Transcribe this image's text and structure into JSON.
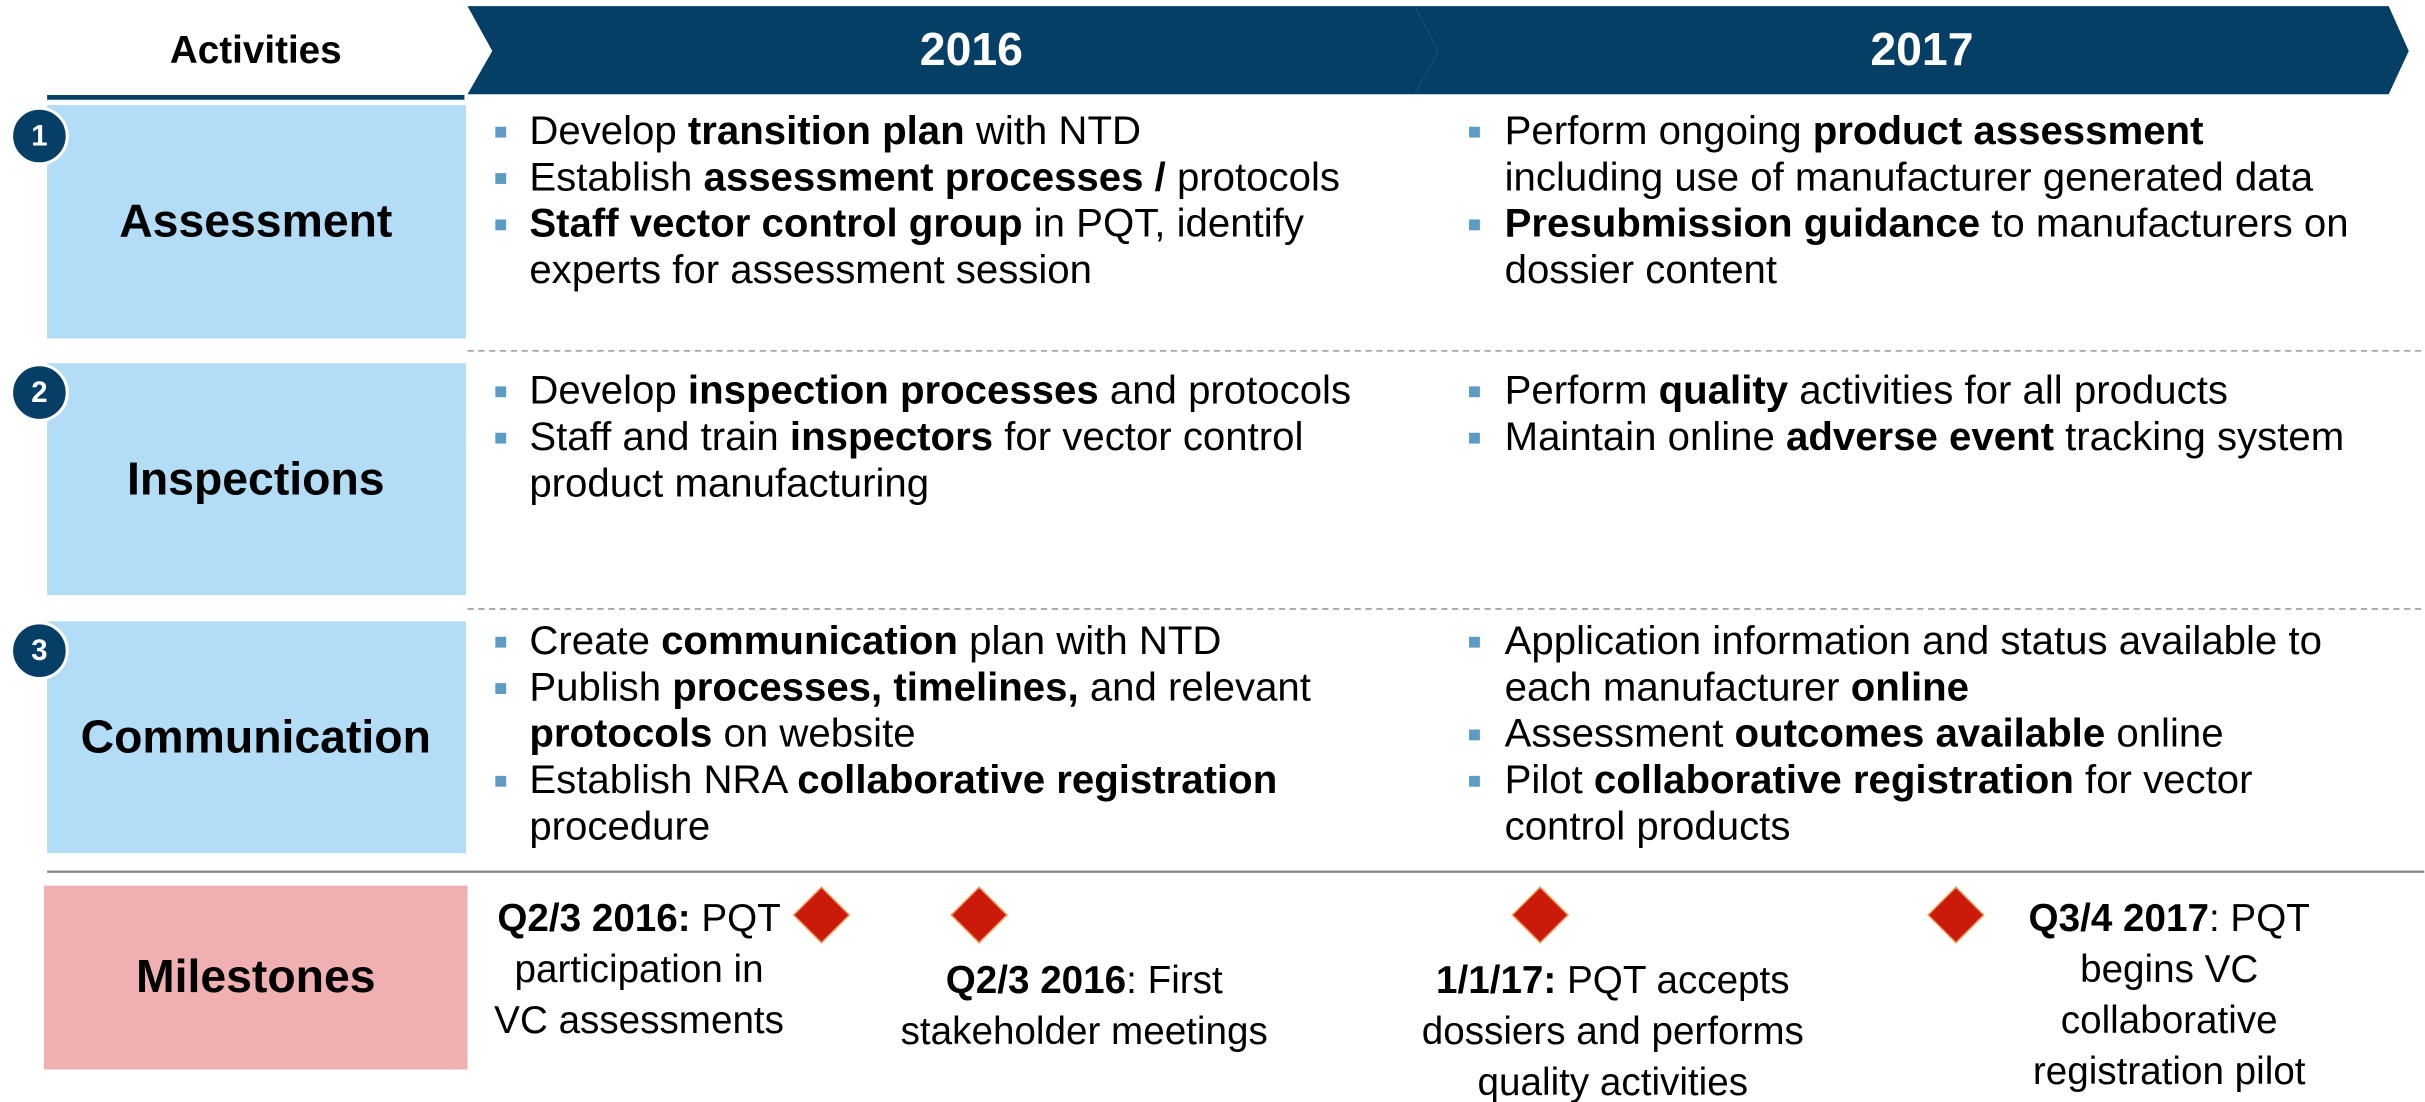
{
  "header": {
    "activities": "Activities",
    "years": [
      "2016",
      "2017"
    ]
  },
  "rows": [
    {
      "number": "1",
      "label": "Assessment",
      "y2016": [
        [
          [
            "Develop ",
            {
              "bold": "transition plan"
            },
            " with NTD"
          ]
        ],
        [
          [
            "Establish ",
            {
              "bold": "assessment processes /"
            },
            " protocols"
          ]
        ],
        [
          [
            {
              "bold": "Staff vector control group"
            },
            " in PQT, identify"
          ],
          [
            "experts for assessment session"
          ]
        ]
      ],
      "y2017": [
        [
          [
            "Perform ongoing ",
            {
              "bold": "product assessment"
            }
          ],
          [
            "including use of manufacturer generated data"
          ]
        ],
        [
          [
            {
              "bold": "Presubmission guidance"
            },
            " to manufacturers on"
          ],
          [
            "dossier content"
          ]
        ]
      ]
    },
    {
      "number": "2",
      "label": "Inspections",
      "y2016": [
        [
          [
            "Develop ",
            {
              "bold": "inspection processes"
            },
            " and protocols"
          ]
        ],
        [
          [
            "Staff and train ",
            {
              "bold": "inspectors"
            },
            " for vector control"
          ],
          [
            "product manufacturing"
          ]
        ]
      ],
      "y2017": [
        [
          [
            "Perform ",
            {
              "bold": "quality"
            },
            " activities for all products"
          ]
        ],
        [
          [
            "Maintain online ",
            {
              "bold": "adverse event"
            },
            " tracking system"
          ]
        ]
      ]
    },
    {
      "number": "3",
      "label": "Communication",
      "y2016": [
        [
          [
            "Create ",
            {
              "bold": "communication"
            },
            " plan with NTD"
          ]
        ],
        [
          [
            "Publish ",
            {
              "bold": "processes, timelines,"
            },
            " and relevant"
          ],
          [
            {
              "bold": "protocols"
            },
            " on website"
          ]
        ],
        [
          [
            "Establish NRA ",
            {
              "bold": "collaborative registration"
            }
          ],
          [
            "procedure"
          ]
        ]
      ],
      "y2017": [
        [
          [
            "Application information and status available to"
          ],
          [
            "each manufacturer ",
            {
              "bold": "online"
            }
          ]
        ],
        [
          [
            "Assessment ",
            {
              "bold": "outcomes available"
            },
            " online"
          ]
        ],
        [
          [
            "Pilot ",
            {
              "bold": "collaborative registration"
            },
            " for vector"
          ],
          [
            "control products"
          ]
        ]
      ]
    }
  ],
  "milestones": {
    "label": "Milestones",
    "items": [
      [
        [
          {
            "bold": "Q2/3 2016:"
          },
          " PQT"
        ],
        [
          "participation in"
        ],
        [
          "VC assessments"
        ]
      ],
      [
        [
          {
            "bold": "Q2/3 2016"
          },
          ": First"
        ],
        [
          "stakeholder meetings"
        ]
      ],
      [
        [
          {
            "bold": "1/1/17:"
          },
          " PQT accepts"
        ],
        [
          "dossiers and performs"
        ],
        [
          "quality activities"
        ]
      ],
      [
        [
          {
            "bold": "Q3/4 2017"
          },
          ": PQT"
        ],
        [
          "begins VC"
        ],
        [
          "collaborative"
        ],
        [
          "registration pilot"
        ]
      ]
    ]
  }
}
